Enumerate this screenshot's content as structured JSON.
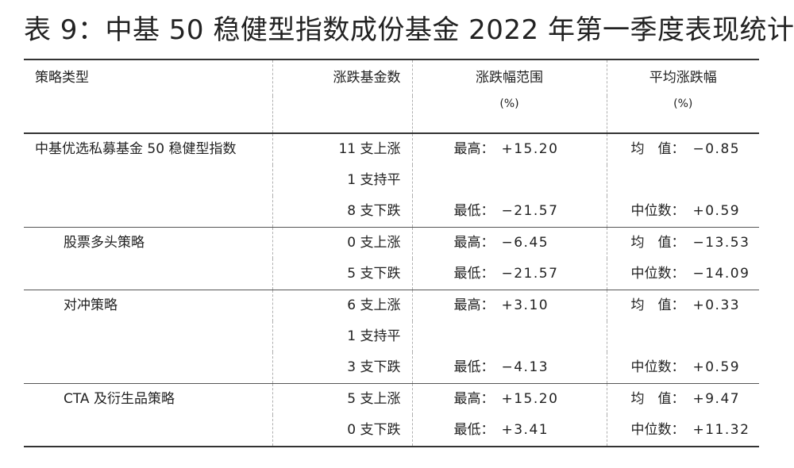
{
  "title": "表 9：中基 50 稳健型指数成份基金 2022 年第一季度表现统计",
  "headers": {
    "col1": "策略类型",
    "col2": "涨跌基金数",
    "col3": "涨跌幅范围",
    "col3_unit": "(%)",
    "col4": "平均涨跌幅",
    "col4_unit": "(%)"
  },
  "groups": [
    {
      "name": "中基优选私募基金 50 稳健型指数",
      "counts": [
        "11 支上涨",
        "1 支持平",
        "8 支下跌"
      ],
      "max_label": "最高：",
      "max_value": "+15.20",
      "min_label": "最低：",
      "min_value": "−21.57",
      "mean_label": "均　值：",
      "mean_value": "−0.85",
      "median_label": "中位数：",
      "median_value": "+0.59"
    },
    {
      "name": "股票多头策略",
      "counts": [
        "0 支上涨",
        "5 支下跌"
      ],
      "max_label": "最高：",
      "max_value": "−6.45",
      "min_label": "最低：",
      "min_value": "−21.57",
      "mean_label": "均　值：",
      "mean_value": "−13.53",
      "median_label": "中位数：",
      "median_value": "−14.09"
    },
    {
      "name": "对冲策略",
      "counts": [
        "6 支上涨",
        "1 支持平",
        "3 支下跌"
      ],
      "max_label": "最高：",
      "max_value": "+3.10",
      "min_label": "最低：",
      "min_value": "−4.13",
      "mean_label": "均　值：",
      "mean_value": "+0.33",
      "median_label": "中位数：",
      "median_value": "+0.59"
    },
    {
      "name": "CTA 及衍生品策略",
      "counts": [
        "5 支上涨",
        "0 支下跌"
      ],
      "max_label": "最高：",
      "max_value": "+15.20",
      "min_label": "最低：",
      "min_value": "+3.41",
      "mean_label": "均　值：",
      "mean_value": "+9.47",
      "median_label": "中位数：",
      "median_value": "+11.32"
    }
  ]
}
